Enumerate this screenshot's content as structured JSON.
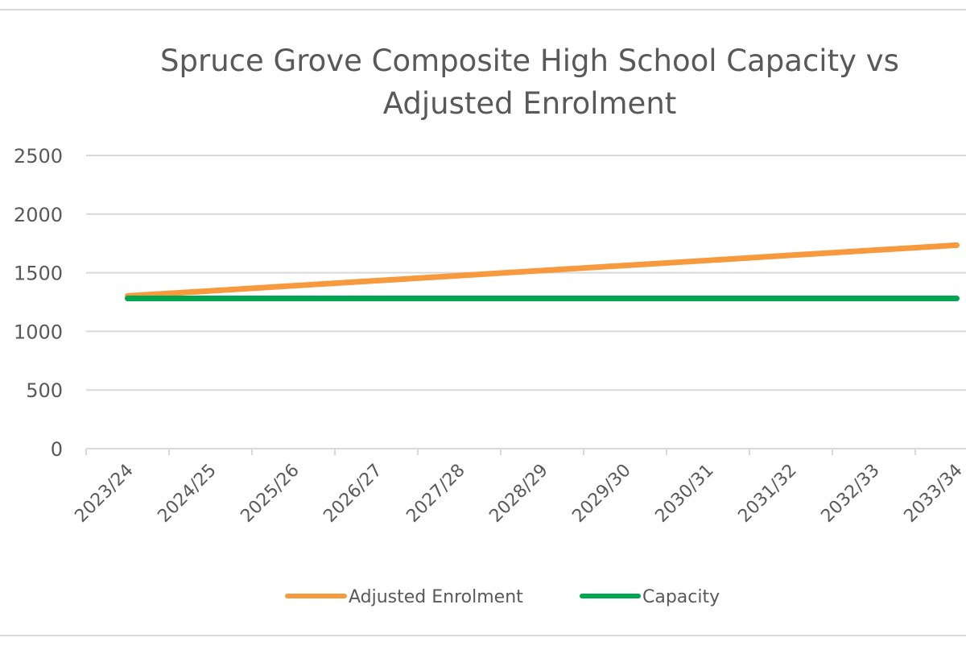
{
  "chart_data": {
    "type": "line",
    "title_lines": [
      "Spruce Grove Composite High School Capacity vs",
      "Adjusted Enrolment"
    ],
    "xlabel": "",
    "ylabel": "",
    "categories": [
      "2023/24",
      "2024/25",
      "2025/26",
      "2026/27",
      "2027/28",
      "2028/29",
      "2029/30",
      "2030/31",
      "2031/32",
      "2032/33",
      "2033/34"
    ],
    "ylim": [
      0,
      2500
    ],
    "yticks": [
      0,
      500,
      1000,
      1500,
      2000,
      2500
    ],
    "ytick_labels": [
      "0",
      "500",
      "1000",
      "1500",
      "2000",
      "2500"
    ],
    "grid": true,
    "legend_position": "bottom",
    "series": [
      {
        "name": "Adjusted Enrolment",
        "color": "#f79a3e",
        "values": [
          1302,
          1345,
          1389,
          1432,
          1475,
          1519,
          1562,
          1605,
          1649,
          1692,
          1735
        ]
      },
      {
        "name": "Capacity",
        "color": "#00a64f",
        "values": [
          1281,
          1281,
          1281,
          1281,
          1281,
          1281,
          1281,
          1281,
          1281,
          1281,
          1281
        ]
      }
    ]
  }
}
